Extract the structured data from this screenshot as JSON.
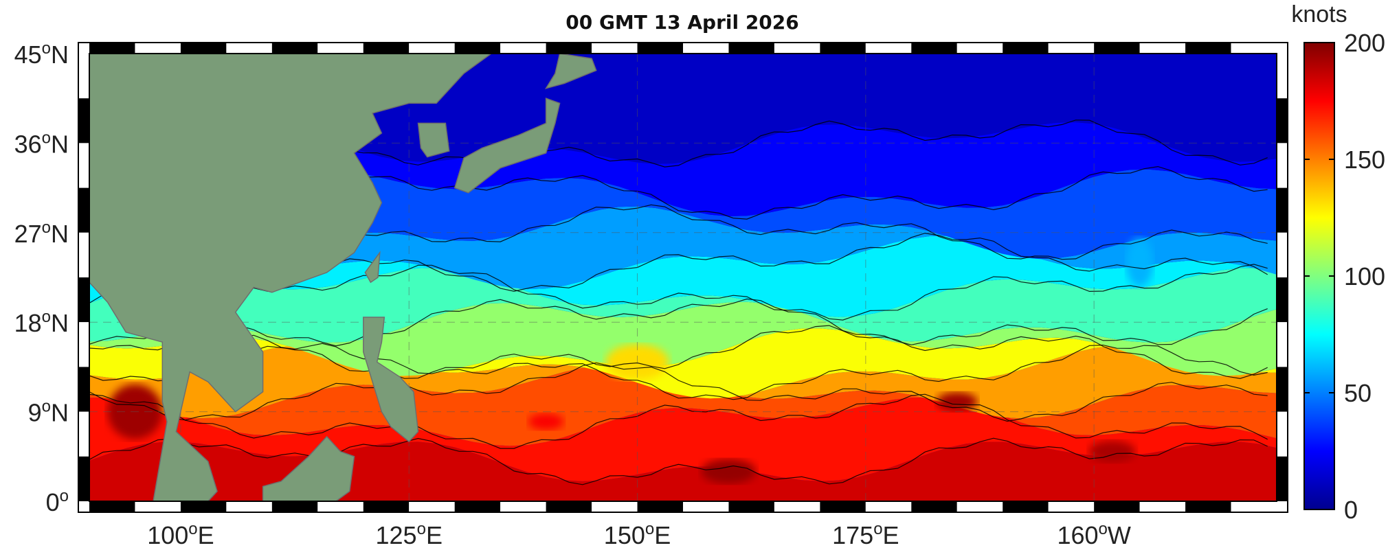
{
  "title": "00 GMT 13 April 2026",
  "colorbar": {
    "unit_label": "knots",
    "min": 0,
    "max": 200,
    "tick_labels": [
      "200",
      "150",
      "100",
      "50",
      "0"
    ],
    "tick_values": [
      200,
      150,
      100,
      50,
      0
    ],
    "colormap": "jet",
    "colors": [
      "#00008f",
      "#0000ff",
      "#0080ff",
      "#00ffff",
      "#80ff80",
      "#ffff00",
      "#ff8000",
      "#ff0000",
      "#800000"
    ]
  },
  "axes": {
    "lat_ticks": [
      "45",
      "36",
      "27",
      "18",
      "9",
      "0"
    ],
    "lat_hemis": [
      "N",
      "N",
      "N",
      "N",
      "N",
      ""
    ],
    "lat_values": [
      45,
      36,
      27,
      18,
      9,
      0
    ],
    "lon_ticks": [
      "100",
      "125",
      "150",
      "175",
      "160"
    ],
    "lon_hemis": [
      "E",
      "E",
      "E",
      "E",
      "W"
    ],
    "lon_values": [
      100,
      125,
      150,
      175,
      200
    ],
    "degree_symbol": "o",
    "lon_range": [
      90,
      220
    ],
    "lat_range": [
      0,
      45
    ]
  },
  "map": {
    "land_color": "#7a9c78",
    "land_border_color": "#6e6e6e",
    "frame_colors": [
      "#000000",
      "#ffffff"
    ]
  }
}
